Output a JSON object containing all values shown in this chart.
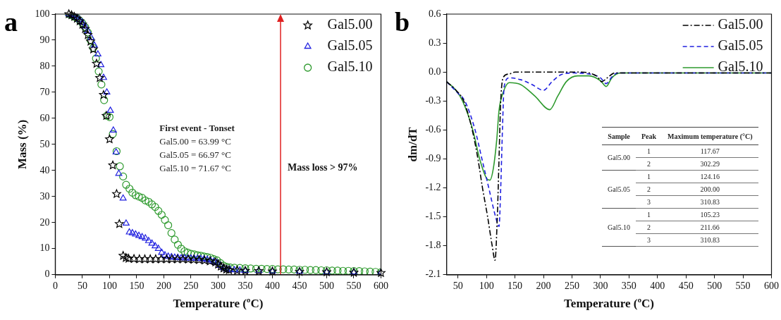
{
  "chart_data": [
    {
      "type": "scatter",
      "title": "a",
      "xlabel": "Temperature (ºC)",
      "ylabel": "Mass (%)",
      "xlim": [
        0,
        600
      ],
      "xticks": [
        0,
        50,
        100,
        150,
        200,
        250,
        300,
        350,
        400,
        450,
        500,
        550,
        600
      ],
      "ylim": [
        0,
        100
      ],
      "yticks": [
        0,
        10,
        20,
        30,
        40,
        50,
        60,
        70,
        80,
        90,
        100
      ],
      "legend": "top right",
      "series": [
        {
          "name": "Gal5.00",
          "color": "#000000",
          "marker": "star",
          "x": [
            25,
            30,
            35,
            40,
            45,
            50,
            55,
            60,
            65,
            70,
            76,
            82,
            89,
            94,
            100,
            106,
            113,
            118,
            125,
            130,
            135,
            145,
            155,
            165,
            175,
            185,
            195,
            205,
            215,
            225,
            235,
            245,
            255,
            265,
            275,
            285,
            295,
            300,
            305,
            310,
            315,
            320,
            335,
            350,
            375,
            400,
            450,
            500,
            550,
            600
          ],
          "values": [
            100,
            99.6,
            99,
            98.3,
            97.3,
            96,
            94.3,
            92,
            89.5,
            86.5,
            81,
            75.5,
            69,
            61,
            52,
            42,
            31,
            19.5,
            7.3,
            6.5,
            6.2,
            6.1,
            6,
            6,
            6,
            6,
            6,
            6,
            6,
            6,
            6,
            5.9,
            5.8,
            5.7,
            5.5,
            5.2,
            4.8,
            4,
            3.2,
            2.5,
            2,
            1.8,
            1.6,
            1.5,
            1.4,
            1.3,
            1.1,
            1,
            0.8,
            0.7
          ]
        },
        {
          "name": "Gal5.05",
          "color": "#2020e0",
          "marker": "triangle",
          "x": [
            25,
            30,
            35,
            40,
            45,
            50,
            55,
            60,
            66,
            72,
            78.5,
            84,
            89,
            95,
            101.5,
            107,
            112,
            117,
            125,
            130.5,
            136.5,
            142,
            148,
            154,
            160,
            166,
            172,
            178,
            184,
            190,
            196,
            202,
            208,
            214,
            220,
            226,
            232,
            238,
            244,
            250,
            256,
            262,
            268,
            274,
            280,
            286,
            292,
            298,
            304,
            310,
            316,
            322,
            330,
            340,
            350,
            375,
            400,
            450,
            500,
            550,
            600
          ],
          "values": [
            100,
            99.7,
            99.2,
            98.7,
            97.8,
            96.8,
            95.3,
            93.5,
            91,
            88,
            84.6,
            80.5,
            75.6,
            70,
            63,
            55.4,
            47,
            38.8,
            29.3,
            19.7,
            16.3,
            16,
            15.5,
            15,
            14.5,
            14,
            13,
            12,
            11,
            10,
            8.5,
            7.5,
            7,
            6.8,
            6.6,
            6.5,
            6.4,
            6.4,
            6.3,
            6.3,
            6.2,
            6.2,
            6.1,
            6,
            5.8,
            5.5,
            5,
            4.5,
            3.5,
            2.6,
            2.1,
            1.9,
            1.8,
            1.7,
            1.6,
            1.5,
            1.4,
            1.3,
            1.1,
            1,
            0.9
          ]
        },
        {
          "name": "Gal5.10",
          "color": "#2e9a2e",
          "marker": "circle",
          "x": [
            25,
            30,
            35,
            40,
            45,
            50,
            55,
            60,
            65,
            70,
            75,
            80,
            85,
            90,
            95,
            100,
            106,
            113,
            119,
            125,
            130.5,
            136.7,
            142,
            148,
            154,
            160,
            166,
            172,
            178,
            184,
            190,
            196,
            202,
            208,
            214,
            220,
            226,
            232,
            238,
            244,
            250,
            256,
            262,
            268,
            274,
            280,
            286,
            292,
            298,
            304,
            310,
            316,
            322,
            330,
            340,
            350,
            360,
            370,
            380,
            390,
            400,
            410,
            420,
            430,
            440,
            450,
            460,
            470,
            480,
            490,
            500,
            510,
            520,
            530,
            540,
            550,
            560,
            570,
            580,
            590,
            600
          ],
          "values": [
            100,
            99.6,
            99,
            98.5,
            97.5,
            96.5,
            95,
            93,
            90,
            87,
            83,
            78,
            73,
            67,
            61,
            60.5,
            54,
            47.4,
            41.6,
            37.7,
            34.5,
            33,
            31.5,
            30.5,
            30,
            29.5,
            28.5,
            28,
            27,
            26,
            24.5,
            23,
            21,
            19,
            16,
            13.5,
            11.5,
            10,
            9,
            8.5,
            8,
            7.8,
            7.5,
            7.3,
            7,
            6.8,
            6.5,
            6,
            5.5,
            4.5,
            3.5,
            3,
            2.8,
            2.7,
            2.6,
            2.5,
            2.4,
            2.3,
            2.3,
            2.2,
            2.2,
            2.1,
            2.1,
            2,
            2,
            1.9,
            1.9,
            1.8,
            1.8,
            1.7,
            1.7,
            1.6,
            1.6,
            1.5,
            1.5,
            1.4,
            1.4,
            1.3,
            1.2,
            1.1,
            1
          ]
        }
      ],
      "ref_lines": [
        {
          "axis": "x",
          "value": 415,
          "label": "Mass loss > 97%",
          "color": "#e02020"
        }
      ],
      "annotations": [
        "First event - Tonset",
        "Gal5.00 = 63.99 °C",
        "Gal5.05 = 66.97 °C",
        "Gal5.10 = 71.67 °C"
      ]
    },
    {
      "type": "line",
      "title": "b",
      "xlabel": "Temperature (ºC)",
      "ylabel": "dm/dT",
      "xlim": [
        30,
        600
      ],
      "xticks": [
        50,
        100,
        150,
        200,
        250,
        300,
        350,
        400,
        450,
        500,
        550,
        600
      ],
      "ylim": [
        -2.1,
        0.6
      ],
      "yticks": [
        -2.1,
        -1.8,
        -1.5,
        -1.2,
        -0.9,
        -0.6,
        -0.3,
        {
          "value": 0,
          "label": "0.0"
        },
        0.3,
        0.6
      ],
      "legend": "top right",
      "series": [
        {
          "name": "Gal5.00",
          "color": "#000000",
          "line_style": "dashdot",
          "x": [
            30,
            45,
            60,
            75,
            85,
            93,
            102,
            110,
            115,
            119,
            122,
            125,
            130,
            140,
            150,
            200,
            260,
            280,
            295,
            302,
            312,
            325,
            400,
            500,
            600
          ],
          "values": [
            -0.1,
            -0.18,
            -0.3,
            -0.6,
            -0.9,
            -1.2,
            -1.5,
            -1.8,
            -1.95,
            -1.5,
            -0.9,
            -0.3,
            -0.05,
            -0.02,
            0,
            0,
            0,
            -0.01,
            -0.05,
            -0.1,
            -0.06,
            -0.01,
            -0.01,
            -0.01,
            -0.01
          ]
        },
        {
          "name": "Gal5.05",
          "color": "#2020e0",
          "line_style": "dashed",
          "x": [
            30,
            50,
            62,
            80,
            92,
            104,
            116,
            122,
            125,
            128,
            131,
            140,
            160,
            180,
            200,
            215,
            230,
            250,
            280,
            300,
            310,
            320,
            330,
            400,
            500,
            600
          ],
          "values": [
            -0.1,
            -0.22,
            -0.3,
            -0.6,
            -0.9,
            -1.2,
            -1.5,
            -1.6,
            -1.2,
            -0.6,
            -0.15,
            -0.06,
            -0.08,
            -0.13,
            -0.19,
            -0.1,
            -0.03,
            -0.01,
            -0.02,
            -0.06,
            -0.12,
            -0.05,
            -0.01,
            -0.01,
            -0.01,
            -0.01
          ]
        },
        {
          "name": "Gal5.10",
          "color": "#2e9a2e",
          "line_style": "solid",
          "x": [
            30,
            45,
            58,
            76,
            88,
            100,
            106,
            112,
            118,
            122,
            130,
            140,
            160,
            185,
            211,
            225,
            240,
            260,
            280,
            300,
            310,
            320,
            335,
            400,
            500,
            600
          ],
          "values": [
            -0.1,
            -0.18,
            -0.3,
            -0.6,
            -0.9,
            -1.1,
            -1.12,
            -1.0,
            -0.7,
            -0.4,
            -0.2,
            -0.11,
            -0.13,
            -0.25,
            -0.39,
            -0.25,
            -0.1,
            -0.04,
            -0.04,
            -0.09,
            -0.15,
            -0.06,
            -0.01,
            -0.01,
            -0.01,
            -0.01
          ]
        }
      ],
      "annotations": [
        "Sample",
        "Peak",
        "Maximum temperature (°C)",
        "Gal5.00",
        "1",
        "117.67",
        "2",
        "302.29",
        "Gal5.05",
        "1",
        "124.16",
        "2",
        "200.00",
        "3",
        "310.83",
        "Gal5.10",
        "1",
        "105.23",
        "2",
        "211.66",
        "3",
        "310.83"
      ]
    }
  ]
}
